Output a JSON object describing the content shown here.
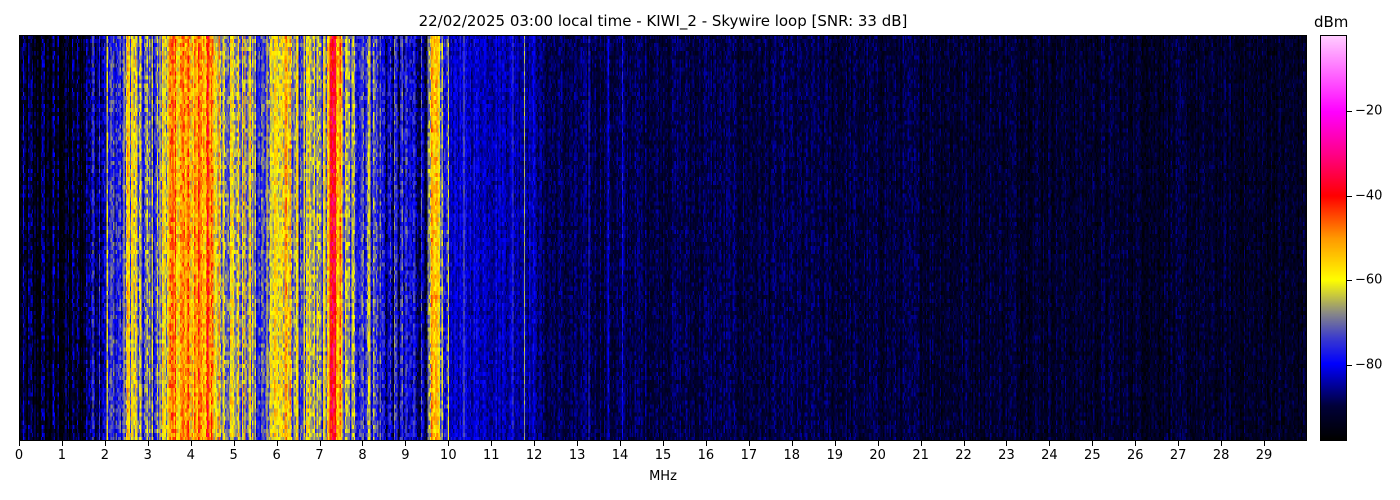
{
  "chart_data": {
    "type": "heatmap",
    "title": "22/02/2025 03:00 local time - KIWI_2 - Skywire loop [SNR: 33 dB]",
    "xlabel": "MHz",
    "xlim": [
      0,
      30
    ],
    "x_ticks": [
      "0",
      "1",
      "2",
      "3",
      "4",
      "5",
      "6",
      "7",
      "8",
      "9",
      "10",
      "11",
      "12",
      "13",
      "14",
      "15",
      "16",
      "17",
      "18",
      "19",
      "20",
      "21",
      "22",
      "23",
      "24",
      "25",
      "26",
      "27",
      "28",
      "29"
    ],
    "colorbar": {
      "label": "dBm",
      "range": [
        -98,
        -2
      ],
      "ticks": [
        "-20",
        "-40",
        "-60",
        "-80"
      ],
      "tick_values": [
        -20,
        -40,
        -60,
        -80
      ],
      "colormap": [
        [
          -98,
          "#000000"
        ],
        [
          -90,
          "#00003a"
        ],
        [
          -80,
          "#0000ff"
        ],
        [
          -74,
          "#3a3ad0"
        ],
        [
          -68,
          "#888888"
        ],
        [
          -60,
          "#ffff00"
        ],
        [
          -50,
          "#ff9900"
        ],
        [
          -40,
          "#ff0000"
        ],
        [
          -30,
          "#ff0088"
        ],
        [
          -20,
          "#ff00ff"
        ],
        [
          -2,
          "#ffccff"
        ]
      ]
    },
    "mean_level_profile_dBm": [
      [
        0,
        -95
      ],
      [
        1.5,
        -94
      ],
      [
        1.6,
        -84
      ],
      [
        1.8,
        -80
      ],
      [
        2.4,
        -76
      ],
      [
        2.5,
        -62
      ],
      [
        2.7,
        -62
      ],
      [
        2.8,
        -74
      ],
      [
        3.2,
        -72
      ],
      [
        3.4,
        -58
      ],
      [
        3.7,
        -50
      ],
      [
        4.0,
        -55
      ],
      [
        4.2,
        -46
      ],
      [
        4.4,
        -50
      ],
      [
        4.6,
        -60
      ],
      [
        5.0,
        -64
      ],
      [
        5.4,
        -66
      ],
      [
        5.6,
        -80
      ],
      [
        5.8,
        -60
      ],
      [
        6.3,
        -60
      ],
      [
        6.5,
        -70
      ],
      [
        7.1,
        -68
      ],
      [
        7.25,
        -44
      ],
      [
        7.4,
        -44
      ],
      [
        7.55,
        -70
      ],
      [
        8.2,
        -72
      ],
      [
        8.5,
        -82
      ],
      [
        9.5,
        -82
      ],
      [
        9.6,
        -60
      ],
      [
        9.8,
        -62
      ],
      [
        9.9,
        -82
      ],
      [
        12,
        -84
      ],
      [
        12.2,
        -89
      ],
      [
        30,
        -93
      ]
    ],
    "narrow_carriers_MHz": [
      [
        2.05,
        -62
      ],
      [
        2.6,
        -58
      ],
      [
        8.15,
        -62
      ],
      [
        10.0,
        -64
      ],
      [
        10.35,
        -70
      ],
      [
        11.5,
        -75
      ],
      [
        11.75,
        -66
      ],
      [
        13.25,
        -78
      ],
      [
        13.7,
        -82
      ],
      [
        14.05,
        -80
      ]
    ],
    "rows": 100
  }
}
